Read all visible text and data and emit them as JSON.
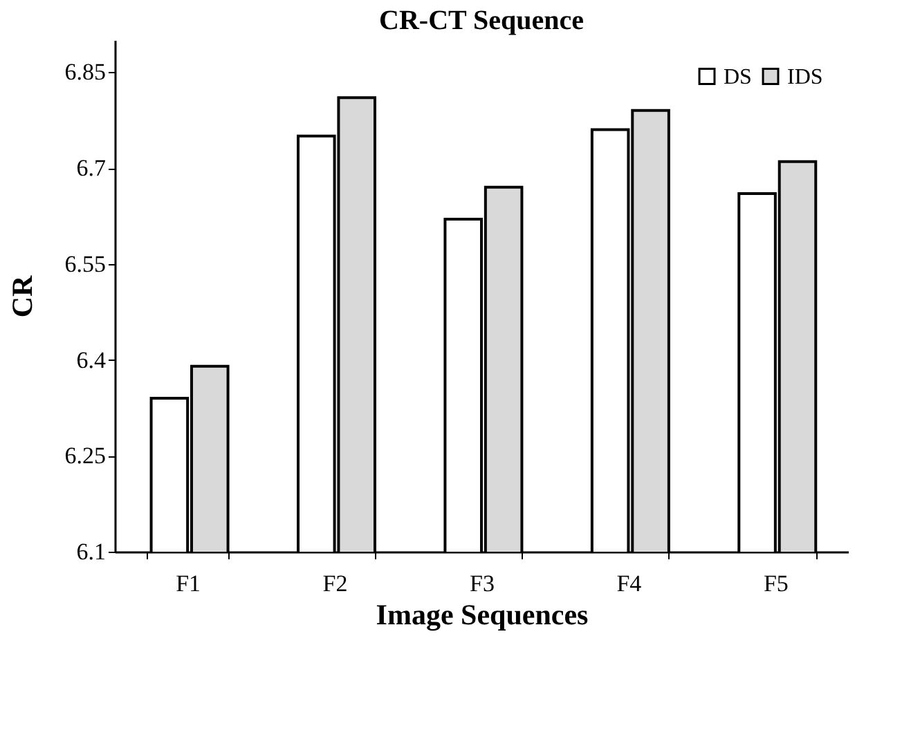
{
  "chart_data": {
    "type": "bar",
    "title": "CR-CT Sequence",
    "xlabel": "Image Sequences",
    "ylabel": "CR",
    "categories": [
      "F1",
      "F2",
      "F3",
      "F4",
      "F5"
    ],
    "series": [
      {
        "name": "DS",
        "color": "#ffffff",
        "values": [
          6.34,
          6.75,
          6.62,
          6.76,
          6.66
        ]
      },
      {
        "name": "IDS",
        "color": "#d9d9d9",
        "values": [
          6.39,
          6.81,
          6.67,
          6.79,
          6.71
        ]
      }
    ],
    "ylim": [
      6.1,
      6.9
    ],
    "yticks": [
      6.1,
      6.25,
      6.4,
      6.55,
      6.7,
      6.85
    ],
    "grid": false,
    "legend": "top right"
  }
}
